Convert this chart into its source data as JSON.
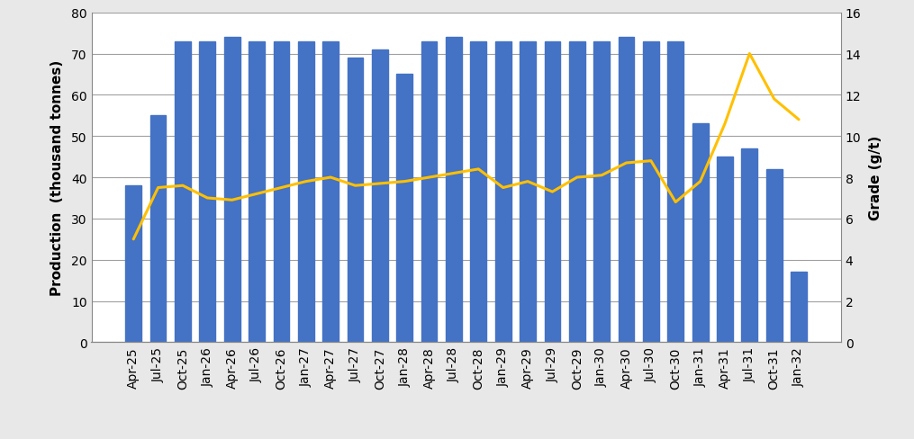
{
  "categories": [
    "Apr-25",
    "Jul-25",
    "Oct-25",
    "Jan-26",
    "Apr-26",
    "Jul-26",
    "Oct-26",
    "Jan-27",
    "Apr-27",
    "Jul-27",
    "Oct-27",
    "Jan-28",
    "Apr-28",
    "Jul-28",
    "Oct-28",
    "Jan-29",
    "Apr-29",
    "Jul-29",
    "Oct-29",
    "Jan-30",
    "Apr-30",
    "Jul-30",
    "Oct-30",
    "Jan-31",
    "Apr-31",
    "Jul-31",
    "Oct-31",
    "Jan-32"
  ],
  "bar_values": [
    38,
    55,
    73,
    73,
    74,
    73,
    73,
    73,
    73,
    69,
    71,
    65,
    73,
    74,
    73,
    73,
    73,
    73,
    73,
    73,
    74,
    73,
    73,
    53,
    45,
    47,
    42,
    17
  ],
  "line_values": [
    5.0,
    7.5,
    7.6,
    7.0,
    6.9,
    7.2,
    7.5,
    7.8,
    8.0,
    7.6,
    7.7,
    7.8,
    8.0,
    8.2,
    8.4,
    7.5,
    7.8,
    7.3,
    8.0,
    8.1,
    8.7,
    8.8,
    6.8,
    7.8,
    10.6,
    14.0,
    11.8,
    10.8
  ],
  "bar_color": "#4472C4",
  "line_color": "#FFC000",
  "ylabel_left": "Production  (thousand tonnes)",
  "ylabel_right": "Grade (g/t)",
  "ylim_left": [
    0,
    80
  ],
  "ylim_right": [
    0.0,
    16.0
  ],
  "yticks_left": [
    0,
    10,
    20,
    30,
    40,
    50,
    60,
    70,
    80
  ],
  "yticks_right": [
    0.0,
    2.0,
    4.0,
    6.0,
    8.0,
    10.0,
    12.0,
    14.0,
    16.0
  ],
  "background_color": "#e8e8e8",
  "plot_background": "#ffffff",
  "grid_color": "#a0a0a0",
  "line_width": 2.2,
  "bar_width": 0.65,
  "tick_fontsize": 10,
  "label_fontsize": 11
}
